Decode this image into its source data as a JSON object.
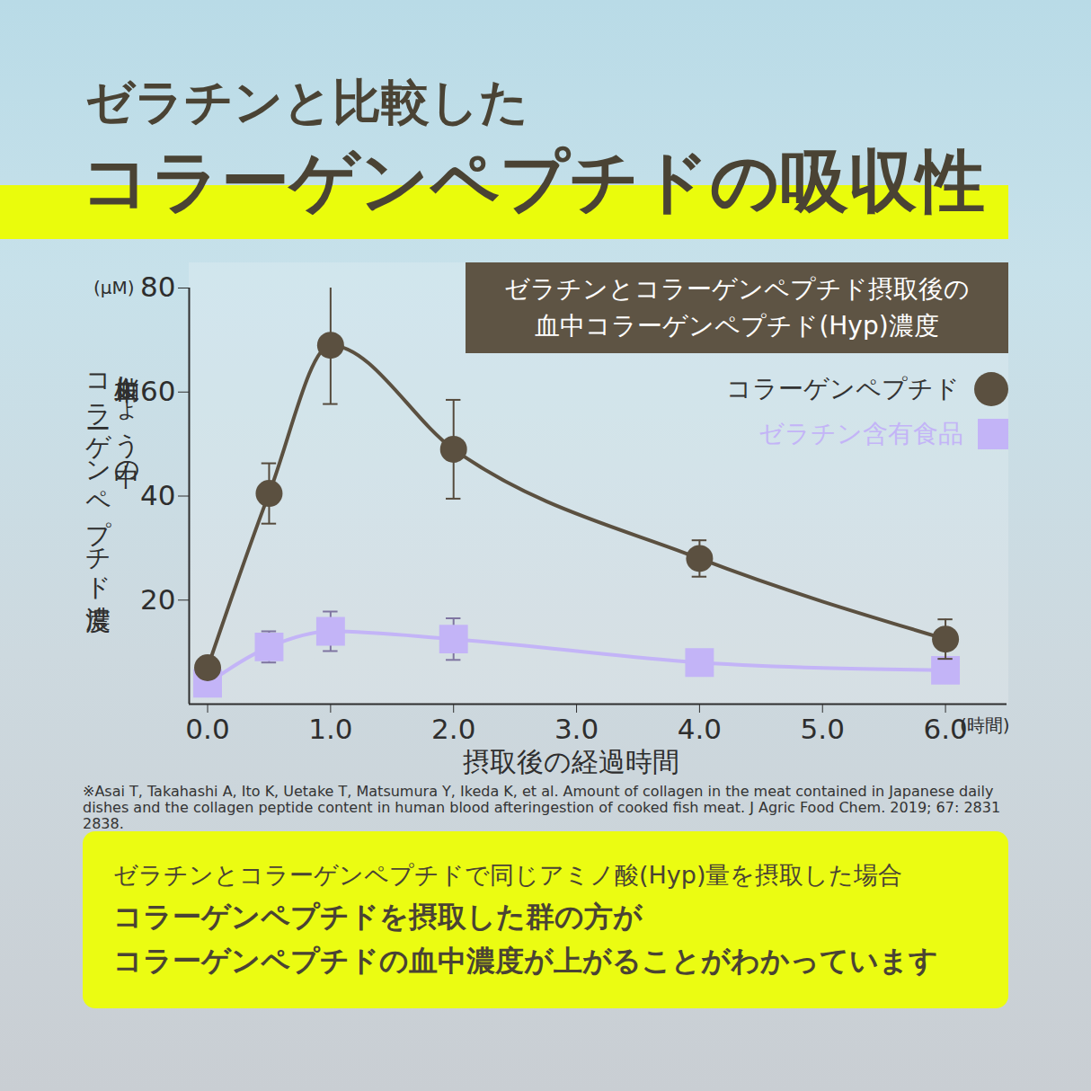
{
  "chart_data": {
    "type": "line",
    "title_lines": [
      "ゼラチンと比較した",
      "コラーゲンペプチドの吸収性"
    ],
    "subtitle_lines": [
      "ゼラチンとコラーゲンペプチド摂取後の",
      "血中コラーゲンペプチド(Hyp)濃度"
    ],
    "x_label": "摂取後の経過時間",
    "x_unit": "(時間)",
    "y_label_lines": [
      "末梢血しょう中の",
      "コラーゲンペプチド濃度"
    ],
    "y_unit": "(μM)",
    "x": [
      0,
      0.5,
      1,
      2,
      4,
      6
    ],
    "series": [
      {
        "name": "コラーゲンペプチド",
        "color": "#5b5040",
        "marker": "circle",
        "values": [
          7,
          40.5,
          69,
          49,
          28,
          12.5
        ],
        "error": [
          null,
          5.8,
          11.3,
          9.5,
          3.5,
          3.8
        ]
      },
      {
        "name": "ゼラチン含有食品",
        "color": "#c3b4f7",
        "marker": "square",
        "values": [
          4,
          11,
          14,
          12.5,
          8,
          6.5
        ],
        "error": [
          null,
          3,
          3.8,
          4,
          null,
          null
        ]
      }
    ],
    "xlim": [
      -0.15,
      6.5
    ],
    "xticks": [
      0,
      1,
      2,
      3,
      4,
      5,
      6
    ],
    "ylim": [
      0,
      80
    ],
    "yticks": [
      20,
      40,
      60,
      80
    ],
    "grid": false,
    "legend": "upper right",
    "source": "※Asai T, Takahashi A, Ito K, Uetake T, Matsumura Y, Ikeda K, et al. Amount of collagen in the meat contained in Japanese daily dishes and the collagen peptide content in human blood afteringestion of cooked fish meat. J Agric Food Chem. 2019; 67: 2831 2838.",
    "note_lines": [
      "ゼラチンとコラーゲンペプチドで同じアミノ酸(Hyp)量を摂取した場合",
      "コラーゲンペプチドを摂取した群の方が",
      "コラーゲンペプチドの血中濃度が上がることがわかっています"
    ]
  }
}
